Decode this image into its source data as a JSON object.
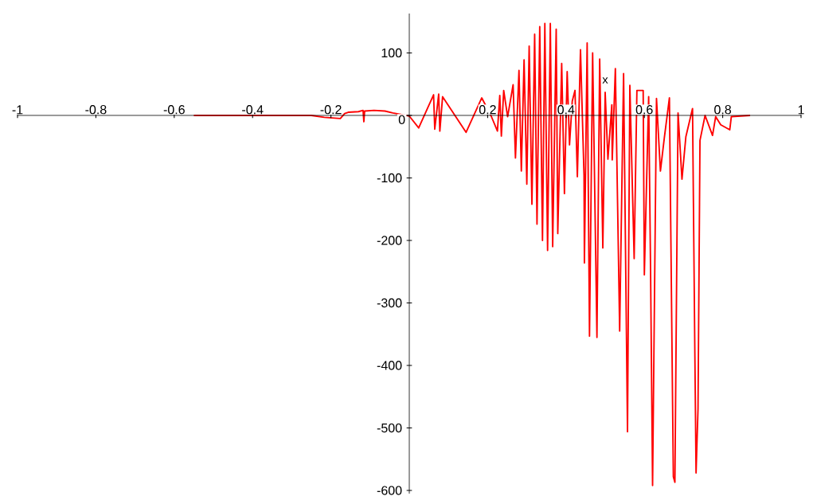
{
  "chart_data": {
    "type": "line",
    "xlabel": "x",
    "x": [
      -0.55,
      -0.25,
      -0.217,
      -0.176,
      -0.165,
      -0.156,
      -0.13,
      -0.118,
      -0.116,
      -0.114,
      -0.09,
      -0.062,
      -0.042,
      0.0,
      0.024,
      0.062,
      0.065,
      0.075,
      0.078,
      0.085,
      0.145,
      0.185,
      0.209,
      0.225,
      0.231,
      0.235,
      0.241,
      0.251,
      0.265,
      0.271,
      0.28,
      0.286,
      0.293,
      0.3,
      0.306,
      0.313,
      0.32,
      0.326,
      0.333,
      0.34,
      0.346,
      0.353,
      0.36,
      0.366,
      0.375,
      0.379,
      0.389,
      0.396,
      0.403,
      0.409,
      0.416,
      0.423,
      0.429,
      0.437,
      0.446,
      0.447,
      0.454,
      0.46,
      0.468,
      0.479,
      0.486,
      0.494,
      0.5,
      0.507,
      0.517,
      0.518,
      0.526,
      0.537,
      0.547,
      0.557,
      0.563,
      0.574,
      0.581,
      0.597,
      0.6,
      0.611,
      0.616,
      0.621,
      0.631,
      0.641,
      0.651,
      0.664,
      0.674,
      0.678,
      0.686,
      0.696,
      0.706,
      0.723,
      0.729,
      0.732,
      0.737,
      0.742,
      0.755,
      0.774,
      0.782,
      0.795,
      0.818,
      0.822,
      0.87
    ],
    "series": [
      {
        "color": "#ff0000",
        "values": [
          0,
          0,
          -3,
          -5,
          3,
          5,
          6,
          8,
          -10,
          7,
          8,
          7,
          4,
          -1,
          -20,
          33,
          -22,
          34,
          -25,
          30,
          -27,
          28,
          -1,
          -25,
          32,
          -33,
          40,
          -2,
          49,
          -68,
          72,
          -89,
          89,
          -110,
          111,
          -142,
          130,
          -174,
          142,
          -200,
          147,
          -216,
          147,
          -210,
          138,
          -189,
          83,
          -125,
          70,
          -47,
          23,
          40,
          -98,
          105,
          -96,
          -236,
          116,
          -353,
          100,
          -355,
          90,
          -212,
          37,
          -70,
          17,
          -71,
          75,
          -345,
          67,
          -506,
          48,
          -229,
          40,
          40,
          -255,
          30,
          -255,
          -592,
          27,
          -89,
          -36,
          28,
          -578,
          -587,
          4,
          -102,
          -34,
          11,
          -386,
          -572,
          -469,
          -40,
          0,
          -32,
          -2,
          -15,
          -23,
          -2,
          0
        ]
      }
    ],
    "xlim": [
      -1,
      1
    ],
    "ylim": [
      -605,
      163
    ],
    "xticks": [
      -1,
      -0.8,
      -0.6,
      -0.4,
      -0.2,
      0.2,
      0.4,
      0.6,
      0.8,
      1
    ],
    "yticks": [
      -600,
      -500,
      -400,
      -300,
      -200,
      -100,
      0,
      100
    ]
  }
}
